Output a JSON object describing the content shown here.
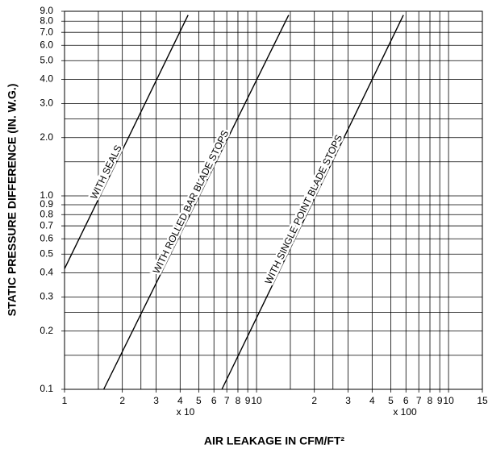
{
  "chart_data": {
    "type": "line",
    "y_label": "STATIC PRESSURE DIFFERENCE (IN. W.G.)",
    "x_label": "AIR LEAKAGE IN CFM/FT²",
    "log_x": true,
    "log_y": true,
    "grid": true,
    "xlim": [
      10,
      1500
    ],
    "ylim": [
      0.1,
      9
    ],
    "xticks": [
      {
        "value": 10,
        "label": "1"
      },
      {
        "value": 20,
        "label": "2"
      },
      {
        "value": 30,
        "label": "3"
      },
      {
        "value": 40,
        "label": "4"
      },
      {
        "value": 50,
        "label": "5"
      },
      {
        "value": 60,
        "label": "6"
      },
      {
        "value": 70,
        "label": "7"
      },
      {
        "value": 80,
        "label": "8"
      },
      {
        "value": 90,
        "label": "9"
      },
      {
        "value": 100,
        "label": "10"
      },
      {
        "value": 200,
        "label": "2"
      },
      {
        "value": 300,
        "label": "3"
      },
      {
        "value": 400,
        "label": "4"
      },
      {
        "value": 500,
        "label": "5"
      },
      {
        "value": 600,
        "label": "6"
      },
      {
        "value": 700,
        "label": "7"
      },
      {
        "value": 800,
        "label": "8"
      },
      {
        "value": 900,
        "label": "9"
      },
      {
        "value": 1000,
        "label": "10"
      },
      {
        "value": 1500,
        "label": "15"
      }
    ],
    "x_minor_grid": [
      15,
      25,
      150,
      250
    ],
    "yticks": [
      0.1,
      0.2,
      0.3,
      0.4,
      0.5,
      0.6,
      0.7,
      0.8,
      0.9,
      {
        "value": 1,
        "label": "1.0"
      },
      {
        "value": 2,
        "label": "2.0"
      },
      {
        "value": 3,
        "label": "3.0"
      },
      {
        "value": 4,
        "label": "4.0"
      },
      {
        "value": 5,
        "label": "5.0"
      },
      {
        "value": 6,
        "label": "6.0"
      },
      {
        "value": 7,
        "label": "7.0"
      },
      {
        "value": 8,
        "label": "8.0"
      },
      {
        "value": 9,
        "label": "9.0"
      }
    ],
    "y_minor_grid": [
      0.15,
      0.25,
      1.5,
      2.5
    ],
    "multipliers": [
      "x 10",
      "x 100"
    ],
    "series": [
      {
        "name": "WITH SEALS",
        "color": "#000000",
        "x": [
          10,
          44
        ],
        "y": [
          0.42,
          8.6
        ]
      },
      {
        "name": "WITH ROLLED BAR BLADE STOPS",
        "color": "#000000",
        "x": [
          16,
          147
        ],
        "y": [
          0.1,
          8.6
        ]
      },
      {
        "name": "WITH SINGLE POINT BLADE STOPS",
        "color": "#000000",
        "x": [
          66,
          582
        ],
        "y": [
          0.1,
          8.6
        ]
      }
    ]
  }
}
